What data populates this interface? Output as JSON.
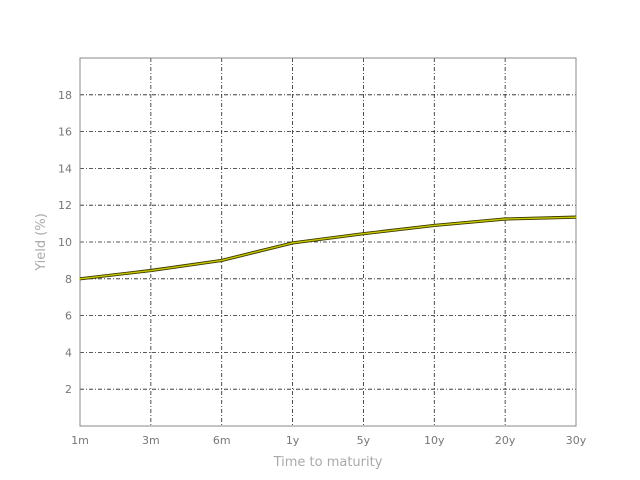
{
  "chart_data": {
    "type": "line",
    "title": "",
    "xlabel": "Time to maturity",
    "ylabel": "Yield (%)",
    "categories": [
      "1m",
      "3m",
      "6m",
      "1y",
      "5y",
      "10y",
      "20y",
      "30y"
    ],
    "series": [
      {
        "values": [
          8.0,
          8.45,
          9.0,
          9.95,
          10.45,
          10.9,
          11.25,
          11.35
        ],
        "color": "#c8c800"
      }
    ],
    "yticks": [
      2,
      4,
      6,
      8,
      10,
      12,
      14,
      16,
      18
    ],
    "ylim": [
      0,
      20
    ],
    "grid": true,
    "legend": "none"
  }
}
